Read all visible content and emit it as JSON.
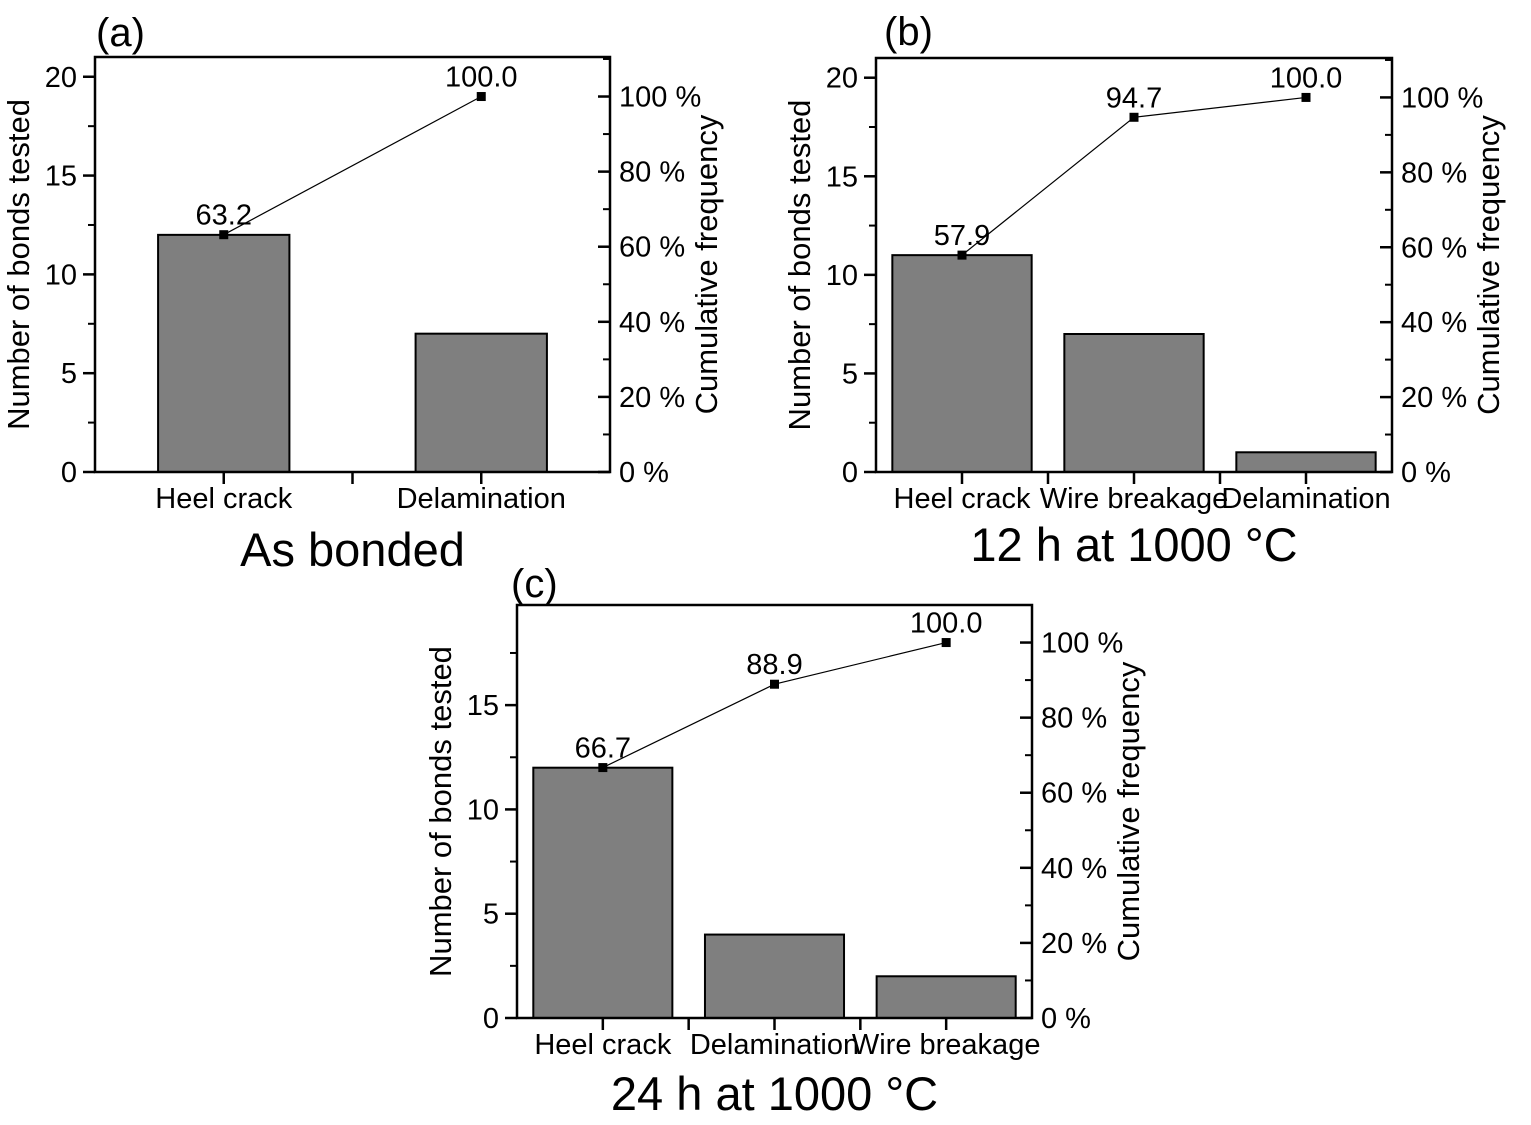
{
  "figure": {
    "background_color": "#ffffff",
    "text_color": "#000000",
    "description": "Three Pareto charts of bond failure modes: bars = number of bonds tested, line = cumulative frequency"
  },
  "chart_data": [
    {
      "panel_id": "a",
      "panel_label": "(a)",
      "type": "bar",
      "subtype": "pareto-bar-with-cumulative-line",
      "title": "As bonded",
      "categories": [
        "Heel crack",
        "Delamination"
      ],
      "series": [
        {
          "name": "Number of bonds tested",
          "type": "bar",
          "values": [
            12,
            7
          ]
        },
        {
          "name": "Cumulative frequency",
          "type": "line",
          "values_pct": [
            63.2,
            100.0
          ],
          "point_labels": [
            "63.2",
            "100.0"
          ]
        }
      ],
      "total_bonds": 19,
      "ylabel_left": "Number of bonds tested",
      "ylabel_right": "Cumulative frequency",
      "ylim_left": [
        0,
        21
      ],
      "ylim_right_pct": [
        0,
        110.5
      ],
      "yticks_left": [
        0,
        5,
        10,
        15,
        20
      ],
      "yticks_left_minor": [
        2.5,
        7.5,
        12.5,
        17.5
      ],
      "yticks_right_pct": [
        0,
        20,
        40,
        60,
        80,
        100
      ],
      "yticks_right_labels": [
        "0 %",
        "20 %",
        "40 %",
        "60 %",
        "80 %",
        "100 %"
      ],
      "yticks_right_minor_pct": [
        10,
        30,
        50,
        70,
        90,
        110
      ],
      "grid": false,
      "legend": "none",
      "bar_color": "#7f7f7f",
      "line_color": "#000000"
    },
    {
      "panel_id": "b",
      "panel_label": "(b)",
      "type": "bar",
      "subtype": "pareto-bar-with-cumulative-line",
      "title": "12 h at 1000 °C",
      "categories": [
        "Heel crack",
        "Wire breakage",
        "Delamination"
      ],
      "series": [
        {
          "name": "Number of bonds tested",
          "type": "bar",
          "values": [
            11,
            7,
            1
          ]
        },
        {
          "name": "Cumulative frequency",
          "type": "line",
          "values_pct": [
            57.9,
            94.7,
            100.0
          ],
          "point_labels": [
            "57.9",
            "94.7",
            "100.0"
          ]
        }
      ],
      "total_bonds": 19,
      "ylabel_left": "Number of bonds tested",
      "ylabel_right": "Cumulative frequency",
      "ylim_left": [
        0,
        21
      ],
      "ylim_right_pct": [
        0,
        110.5
      ],
      "yticks_left": [
        0,
        5,
        10,
        15,
        20
      ],
      "yticks_left_minor": [
        2.5,
        7.5,
        12.5,
        17.5
      ],
      "yticks_right_pct": [
        0,
        20,
        40,
        60,
        80,
        100
      ],
      "yticks_right_labels": [
        "0 %",
        "20 %",
        "40 %",
        "60 %",
        "80 %",
        "100 %"
      ],
      "yticks_right_minor_pct": [
        10,
        30,
        50,
        70,
        90,
        110
      ],
      "grid": false,
      "legend": "none",
      "bar_color": "#7f7f7f",
      "line_color": "#000000"
    },
    {
      "panel_id": "c",
      "panel_label": "(c)",
      "type": "bar",
      "subtype": "pareto-bar-with-cumulative-line",
      "title": "24 h at 1000 °C",
      "categories": [
        "Heel crack",
        "Delamination",
        "Wire breakage"
      ],
      "series": [
        {
          "name": "Number of bonds tested",
          "type": "bar",
          "values": [
            12,
            4,
            2
          ]
        },
        {
          "name": "Cumulative frequency",
          "type": "line",
          "values_pct": [
            66.7,
            88.9,
            100.0
          ],
          "point_labels": [
            "66.7",
            "88.9",
            "100.0"
          ]
        }
      ],
      "total_bonds": 18,
      "ylabel_left": "Number of bonds tested",
      "ylabel_right": "Cumulative frequency",
      "ylim_left": [
        0,
        19.8
      ],
      "ylim_right_pct": [
        0,
        110
      ],
      "yticks_left": [
        0,
        5,
        10,
        15
      ],
      "yticks_left_minor": [
        2.5,
        7.5,
        12.5,
        17.5
      ],
      "yticks_right_pct": [
        0,
        20,
        40,
        60,
        80,
        100
      ],
      "yticks_right_labels": [
        "0 %",
        "20 %",
        "40 %",
        "60 %",
        "80 %",
        "100 %"
      ],
      "yticks_right_minor_pct": [
        10,
        30,
        50,
        70,
        90,
        110
      ],
      "grid": false,
      "legend": "none",
      "bar_color": "#7f7f7f",
      "line_color": "#000000"
    }
  ]
}
